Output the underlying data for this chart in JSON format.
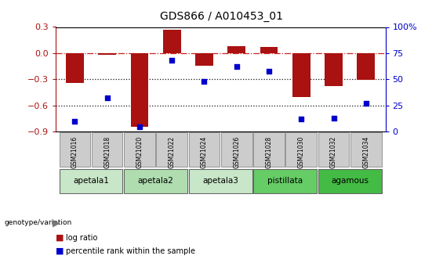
{
  "title": "GDS866 / A010453_01",
  "samples": [
    "GSM21016",
    "GSM21018",
    "GSM21020",
    "GSM21022",
    "GSM21024",
    "GSM21026",
    "GSM21028",
    "GSM21030",
    "GSM21032",
    "GSM21034"
  ],
  "log_ratio": [
    -0.34,
    -0.02,
    -0.84,
    0.27,
    -0.14,
    0.08,
    0.07,
    -0.5,
    -0.38,
    -0.31
  ],
  "percentile_rank": [
    10,
    32,
    5,
    68,
    48,
    62,
    58,
    12,
    13,
    27
  ],
  "groups": [
    {
      "label": "apetala1",
      "indices": [
        0,
        1
      ],
      "color": "#c8e6c8"
    },
    {
      "label": "apetala2",
      "indices": [
        2,
        3
      ],
      "color": "#b0ddb0"
    },
    {
      "label": "apetala3",
      "indices": [
        4,
        5
      ],
      "color": "#c8e6c8"
    },
    {
      "label": "pistillata",
      "indices": [
        6,
        7
      ],
      "color": "#66cc66"
    },
    {
      "label": "agamous",
      "indices": [
        8,
        9
      ],
      "color": "#44bb44"
    }
  ],
  "ylim_left": [
    -0.9,
    0.3
  ],
  "ylim_right": [
    0,
    100
  ],
  "yticks_left": [
    -0.9,
    -0.6,
    -0.3,
    0.0,
    0.3
  ],
  "yticks_right": [
    0,
    25,
    50,
    75,
    100
  ],
  "bar_color": "#aa1111",
  "dot_color": "#0000cc",
  "hline_color": "#cc2222",
  "dotted_line_color": "#111111",
  "sample_box_color": "#cccccc",
  "background_color": "#ffffff",
  "bar_width": 0.55
}
